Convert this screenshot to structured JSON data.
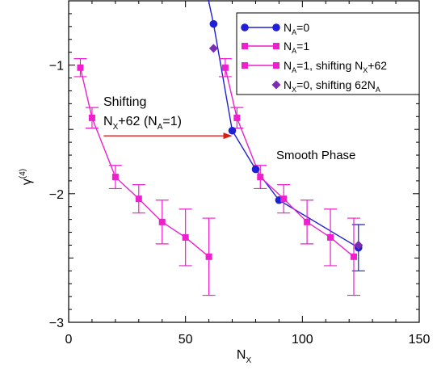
{
  "chart_data": {
    "type": "scatter",
    "xlim": [
      0,
      150
    ],
    "ylim": [
      -3,
      -0.5
    ],
    "x_ticks": [
      "0",
      "50",
      "100",
      "150"
    ],
    "y_ticks": [
      "−3",
      "−2",
      "−1"
    ],
    "xlabel": {
      "main": "N",
      "sub": "X"
    },
    "ylabel": {
      "main": "γ",
      "sup": "(4)"
    },
    "grid": false,
    "legend_position": "top-right",
    "series": [
      {
        "name": {
          "a": "N",
          "a_sub": "A",
          "b": "=0"
        },
        "color": "#1f1fd6",
        "marker": "circle",
        "line": true,
        "points": [
          {
            "x": 62,
            "y": -0.68,
            "err": 0
          },
          {
            "x": 70,
            "y": -1.51,
            "err": 0
          },
          {
            "x": 80,
            "y": -1.81,
            "err": 0
          },
          {
            "x": 90,
            "y": -2.05,
            "err": 0
          },
          {
            "x": 124,
            "y": -2.42,
            "err": 0.18
          }
        ],
        "line_extension": {
          "x": 58,
          "y": -0.34
        }
      },
      {
        "name": {
          "a": "N",
          "a_sub": "A",
          "b": "=1"
        },
        "color": "#ee1fcc",
        "marker": "square",
        "line": true,
        "points": [
          {
            "x": 5,
            "y": -1.02,
            "err": 0.07
          },
          {
            "x": 10,
            "y": -1.41,
            "err": 0.08
          },
          {
            "x": 20,
            "y": -1.87,
            "err": 0.09
          },
          {
            "x": 30,
            "y": -2.04,
            "err": 0.11
          },
          {
            "x": 40,
            "y": -2.22,
            "err": 0.17
          },
          {
            "x": 50,
            "y": -2.34,
            "err": 0.22
          },
          {
            "x": 60,
            "y": -2.49,
            "err": 0.3
          }
        ]
      },
      {
        "name": {
          "a": "N",
          "a_sub": "A",
          "b": "=1, shifting N",
          "c_sub": "X",
          "d": "+62"
        },
        "color": "#ee1fcc",
        "marker": "square",
        "line": true,
        "points": [
          {
            "x": 67,
            "y": -1.02,
            "err": 0.07
          },
          {
            "x": 72,
            "y": -1.41,
            "err": 0.08
          },
          {
            "x": 82,
            "y": -1.87,
            "err": 0.09
          },
          {
            "x": 92,
            "y": -2.04,
            "err": 0.11
          },
          {
            "x": 102,
            "y": -2.22,
            "err": 0.17
          },
          {
            "x": 112,
            "y": -2.34,
            "err": 0.22
          },
          {
            "x": 122,
            "y": -2.49,
            "err": 0.3
          }
        ]
      },
      {
        "name": {
          "a": "N",
          "a_sub": "X",
          "b": "=0, shifting 62N",
          "c_sub": "A",
          "d": ""
        },
        "color": "#7a2db3",
        "marker": "diamond",
        "line": false,
        "points": [
          {
            "x": 62,
            "y": -0.87,
            "err": 0
          },
          {
            "x": 124,
            "y": -2.4,
            "err": 0
          }
        ]
      }
    ],
    "annotations": {
      "shift_line1": "Shifting",
      "shift_line2_main": "N",
      "shift_line2_sub": "X",
      "shift_line2_rest": "+62 (N",
      "shift_line2_sub2": "A",
      "shift_line2_end": "=1)",
      "shift_color": "#ee1111",
      "arrow": {
        "x0": 15,
        "x1": 70,
        "y": -1.55
      },
      "phase": "Smooth Phase"
    }
  }
}
